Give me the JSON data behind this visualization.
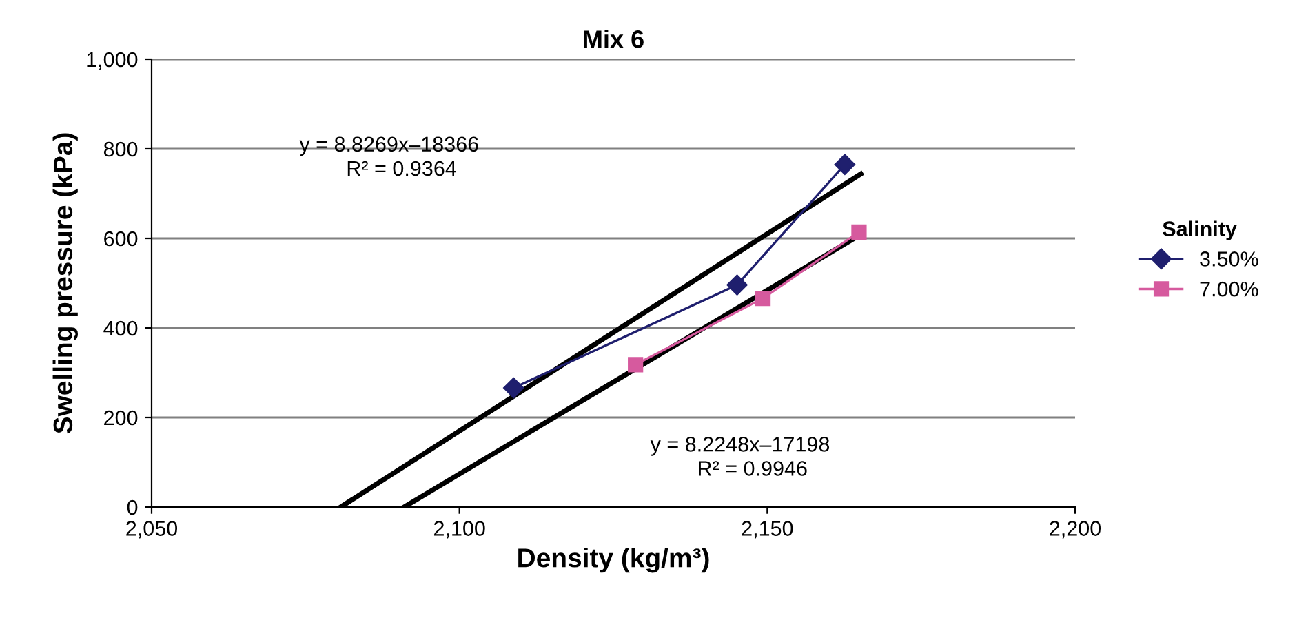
{
  "chart_data": {
    "type": "line",
    "title": "Mix 6",
    "xlabel": "Density (kg/m³)",
    "ylabel": "Swelling pressure (kPa)",
    "legend_title": "Salinity",
    "legend": "right",
    "grid": "y",
    "xlim": [
      2050,
      2200
    ],
    "xticks": [
      {
        "value": 2050,
        "label": "2,050"
      },
      {
        "value": 2100,
        "label": "2,100"
      },
      {
        "value": 2150,
        "label": "2,150"
      },
      {
        "value": 2200,
        "label": "2,200"
      }
    ],
    "ylim": [
      0,
      1000
    ],
    "yticks": [
      0,
      200,
      400,
      600,
      800,
      {
        "value": 1000,
        "label": "1,000"
      }
    ],
    "series": [
      {
        "name": "3.50%",
        "color": "#1f1f6e",
        "marker": "diamond",
        "x": [
          2108.8,
          2145.1,
          2162.6
        ],
        "values": [
          266,
          496,
          765
        ]
      },
      {
        "name": "7.00%",
        "color": "#d65a9e",
        "marker": "square",
        "x": [
          2128.6,
          2149.3,
          2164.9
        ],
        "values": [
          318,
          466,
          614
        ]
      },
      {
        "color": "#000000",
        "marker": "none",
        "x": [
          2080.7,
          2165.2
        ],
        "values": [
          0,
          744
        ]
      },
      {
        "color": "#000000",
        "marker": "none",
        "x": [
          2091.0,
          2165.2
        ],
        "values": [
          0,
          609
        ]
      }
    ],
    "annotations": [
      "y = 8.8269x–18366\n        R² = 0.9364",
      "y = 8.2248x–17198\n        R² = 0.9946"
    ]
  }
}
